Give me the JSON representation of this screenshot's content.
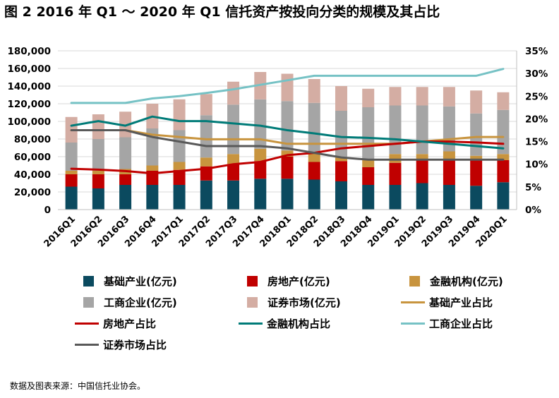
{
  "title": "图 2  2016 年 Q1 ～ 2020 年 Q1 信托资产按投向分类的规模及其占比",
  "source": "数据及图表来源：中国信托业协会。",
  "chart_data": {
    "type": "bar",
    "stacked": true,
    "categories": [
      "2016Q1",
      "2016Q2",
      "2016Q3",
      "2016Q4",
      "2017Q1",
      "2017Q2",
      "2017Q3",
      "2017Q4",
      "2018Q1",
      "2018Q2",
      "2018Q3",
      "2018Q4",
      "2019Q1",
      "2019Q2",
      "2019Q3",
      "2019Q4",
      "2020Q1"
    ],
    "left_axis": {
      "ylim": [
        0,
        180000
      ],
      "ticks": [
        "0",
        "20,000",
        "40,000",
        "60,000",
        "80,000",
        "100,000",
        "120,000",
        "140,000",
        "160,000",
        "180,000"
      ]
    },
    "right_axis": {
      "ylim": [
        0,
        35
      ],
      "ticks": [
        "0%",
        "5%",
        "10%",
        "15%",
        "20%",
        "25%",
        "30%",
        "35%"
      ]
    },
    "grid": true,
    "legend_position": "bottom",
    "series": [
      {
        "name": "基础产业(亿元)",
        "kind": "bar",
        "color": "#0b4a5f",
        "values": [
          26000,
          24000,
          28000,
          28000,
          28000,
          33000,
          33000,
          35000,
          35000,
          34000,
          32000,
          28000,
          28000,
          30000,
          28000,
          27000,
          31000
        ]
      },
      {
        "name": "房地产(亿元)",
        "kind": "bar",
        "color": "#c00000",
        "values": [
          14000,
          16000,
          12000,
          16000,
          17000,
          16000,
          18000,
          20000,
          25000,
          20000,
          23000,
          20000,
          25000,
          27000,
          28000,
          29000,
          25000
        ]
      },
      {
        "name": "金融机构(亿元)",
        "kind": "bar",
        "color": "#c8943e",
        "values": [
          4000,
          4000,
          6000,
          6000,
          9000,
          10000,
          12000,
          14000,
          7000,
          11000,
          4000,
          9000,
          10000,
          6000,
          10000,
          5000,
          7000
        ]
      },
      {
        "name": "工商企业(亿元)",
        "kind": "bar",
        "color": "#a5a5a5",
        "values": [
          32000,
          36000,
          36000,
          42000,
          36000,
          48000,
          56000,
          56000,
          56000,
          56000,
          53000,
          59000,
          55000,
          55000,
          51000,
          48000,
          50000
        ]
      },
      {
        "name": "证券市场(亿元)",
        "kind": "bar",
        "color": "#d4ada3",
        "values": [
          29000,
          28000,
          29000,
          28000,
          35000,
          24000,
          26000,
          31000,
          31000,
          27000,
          28000,
          21000,
          21000,
          21000,
          22000,
          26000,
          20000
        ]
      },
      {
        "name": "基础产业占比",
        "kind": "line",
        "color": "#c8943e",
        "values": [
          17.5,
          17.5,
          17.5,
          16.5,
          16,
          15.5,
          15.5,
          15.5,
          14.5,
          14.5,
          14.5,
          14.5,
          14.5,
          15,
          15.5,
          16,
          16
        ]
      },
      {
        "name": "房地产占比",
        "kind": "line",
        "color": "#c00000",
        "values": [
          9,
          8.8,
          8.5,
          8,
          8.5,
          9,
          10,
          10.5,
          12,
          12.5,
          13.5,
          14,
          14.5,
          15,
          15,
          14.8,
          14.5
        ]
      },
      {
        "name": "金融机构占比",
        "kind": "line",
        "color": "#007b78",
        "values": [
          18.5,
          19.5,
          18.5,
          20.5,
          19.5,
          19.5,
          19,
          18.5,
          17.5,
          16.8,
          16,
          15.8,
          15.5,
          15,
          14.5,
          14,
          13.5
        ]
      },
      {
        "name": "工商企业占比",
        "kind": "line",
        "color": "#76c2c5",
        "values": [
          23.5,
          23.5,
          23.5,
          24.5,
          25,
          25.7,
          26.5,
          27.5,
          28.5,
          29.5,
          29.5,
          29.5,
          29.5,
          29.5,
          29.5,
          29.5,
          31
        ]
      },
      {
        "name": "证券市场占比",
        "kind": "line",
        "color": "#595959",
        "values": [
          17.5,
          17.5,
          17.5,
          16,
          15,
          14,
          14,
          14,
          13.5,
          12.5,
          11.5,
          11,
          11,
          11,
          11,
          11,
          11
        ]
      }
    ]
  }
}
